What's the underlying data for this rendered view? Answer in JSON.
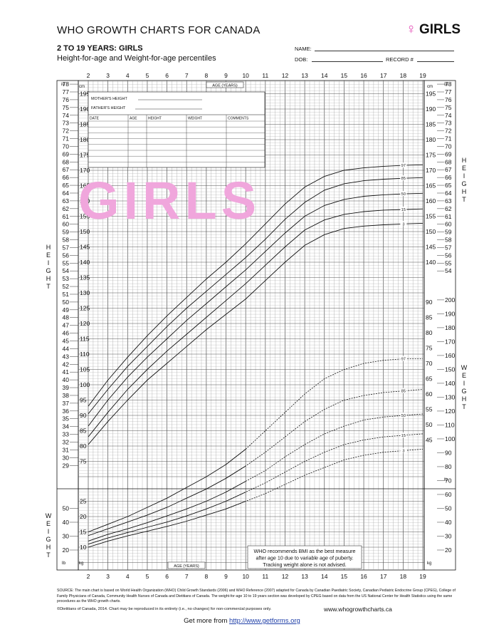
{
  "header": {
    "title": "WHO GROWTH CHARTS FOR CANADA",
    "badge": "GIRLS",
    "subtitle": "2 TO 19 YEARS: GIRLS",
    "subtitle2": "Height-for-age and Weight-for-age percentiles",
    "name_label": "NAME:",
    "dob_label": "DOB:",
    "record_label": "RECORD #"
  },
  "record_table": {
    "mother_height": "MOTHER'S HEIGHT",
    "father_height": "FATHER'S HEIGHT",
    "columns": [
      "DATE",
      "AGE",
      "HEIGHT",
      "WEIGHT",
      "COMMENTS"
    ]
  },
  "watermark": "GIRLS",
  "note": [
    "WHO recommends BMI as the best measure",
    "after age 10 due to variable age of puberty.",
    "Tracking weight alone is not advised."
  ],
  "footer": {
    "source": "SOURCE: The main chart is based on World Health Organization (WHO) Child Growth Standards (2006) and WHO Reference (2007) adapted for Canada by Canadian Paediatric Society, Canadian Pediatric Endocrine Group (CPEG), College of Family Physicians of Canada, Community Health Nurses of Canada and Dietitians of Canada. The weight-for-age 10 to 19 years section was developed by CPEG based on data from the US National Center for Health Statistics using the same procedures as the WHO growth charts.",
    "copyright": "©Dietitians of Canada, 2014. Chart may be reproduced in its entirety (i.e., no changes) for non-commercial purposes only.",
    "site": "www.whogrowthcharts.ca",
    "getmore_prefix": "Get more from ",
    "getmore_link": "http://www.getforms.org"
  },
  "chart_data": [
    {
      "type": "line",
      "name": "height",
      "xlabel": "AGE (YEARS)",
      "ylabel": "HEIGHT",
      "ylabel_letters": [
        "H",
        "E",
        "I",
        "G",
        "H",
        "T"
      ],
      "units": [
        "cm",
        "in"
      ],
      "xlim": [
        2,
        19
      ],
      "ylim_cm": [
        70,
        200
      ],
      "x_ticks": [
        2,
        3,
        4,
        5,
        6,
        7,
        8,
        9,
        10,
        11,
        12,
        13,
        14,
        15,
        16,
        17,
        18,
        19
      ],
      "cm_ticks_left": [
        75,
        80,
        85,
        90,
        95,
        100,
        105,
        110,
        115,
        120,
        125,
        130,
        135,
        140,
        145,
        150,
        155,
        160,
        165,
        170,
        175,
        180,
        185,
        190,
        195
      ],
      "cm_ticks_right": [
        140,
        145,
        150,
        155,
        160,
        165,
        170,
        175,
        180,
        185,
        190,
        195
      ],
      "in_ticks_left": [
        29,
        30,
        31,
        32,
        33,
        34,
        35,
        36,
        37,
        38,
        39,
        40,
        41,
        42,
        43,
        44,
        45,
        46,
        47,
        48,
        49,
        50,
        51,
        52,
        53,
        54,
        55,
        56,
        57,
        58,
        59,
        60,
        61,
        62,
        63,
        64,
        65,
        66,
        67,
        68,
        69,
        70,
        71,
        72,
        73,
        74,
        75,
        76,
        77,
        78
      ],
      "in_ticks_right": [
        54,
        55,
        56,
        57,
        58,
        59,
        60,
        61,
        62,
        63,
        64,
        65,
        66,
        67,
        68,
        69,
        70,
        71,
        72,
        73,
        74,
        75,
        76,
        77,
        78
      ],
      "series": [
        {
          "label": "97",
          "x": [
            2,
            3,
            4,
            5,
            6,
            7,
            8,
            9,
            10,
            11,
            12,
            13,
            14,
            15,
            16,
            17,
            18,
            19
          ],
          "values": [
            93,
            101.5,
            109,
            116,
            122.5,
            128.5,
            134.5,
            140,
            146,
            152.5,
            159,
            164.5,
            168,
            170,
            170.8,
            171.3,
            171.6,
            171.8
          ]
        },
        {
          "label": "85",
          "x": [
            2,
            3,
            4,
            5,
            6,
            7,
            8,
            9,
            10,
            11,
            12,
            13,
            14,
            15,
            16,
            17,
            18,
            19
          ],
          "values": [
            90.5,
            98.5,
            106,
            112.5,
            119,
            125,
            130.5,
            136,
            141.5,
            147.5,
            154,
            159.5,
            163.5,
            165.6,
            166.6,
            167.1,
            167.4,
            167.6
          ]
        },
        {
          "label": "50",
          "x": [
            2,
            3,
            4,
            5,
            6,
            7,
            8,
            9,
            10,
            11,
            12,
            13,
            14,
            15,
            16,
            17,
            18,
            19
          ],
          "values": [
            86.5,
            95,
            102.5,
            109,
            115,
            121,
            126.5,
            132,
            137.5,
            143.5,
            149.5,
            155,
            158.5,
            160.5,
            161.5,
            162,
            162.3,
            162.5
          ]
        },
        {
          "label": "15",
          "x": [
            2,
            3,
            4,
            5,
            6,
            7,
            8,
            9,
            10,
            11,
            12,
            13,
            14,
            15,
            16,
            17,
            18,
            19
          ],
          "values": [
            83,
            91,
            98.5,
            105,
            111,
            116.5,
            122,
            127.5,
            133,
            139,
            145,
            150.5,
            153.8,
            155.6,
            156.5,
            157,
            157.2,
            157.4
          ]
        },
        {
          "label": "3",
          "x": [
            2,
            3,
            4,
            5,
            6,
            7,
            8,
            9,
            10,
            11,
            12,
            13,
            14,
            15,
            16,
            17,
            18,
            19
          ],
          "values": [
            80.5,
            88,
            95,
            101.5,
            107,
            112.5,
            118,
            123,
            128,
            134,
            140,
            145.5,
            149,
            151,
            151.8,
            152.2,
            152.5,
            152.7
          ]
        }
      ]
    },
    {
      "type": "line",
      "name": "weight",
      "xlabel": "AGE (YEARS)",
      "ylabel": "WEIGHT",
      "ylabel_letters": [
        "W",
        "E",
        "I",
        "G",
        "H",
        "T"
      ],
      "units": [
        "kg",
        "lb"
      ],
      "xlim": [
        2,
        19
      ],
      "ylim_kg": [
        5,
        95
      ],
      "kg_ticks_left": [
        10,
        15,
        20,
        25
      ],
      "kg_ticks_right": [
        10,
        15,
        20,
        25,
        30,
        35,
        40,
        45,
        50,
        55,
        60,
        65,
        70,
        75,
        80,
        85,
        90
      ],
      "kg_labels_right": [
        45,
        50,
        55,
        60,
        65,
        70,
        75,
        80,
        85,
        90
      ],
      "kg_labels_left_top": [
        75,
        80,
        85,
        90,
        95,
        100,
        105,
        110,
        115,
        120,
        125,
        130,
        135,
        140,
        145,
        150,
        155,
        160,
        165,
        170,
        175,
        180,
        185,
        190,
        195
      ],
      "lb_ticks_left": [
        20,
        30,
        40,
        50
      ],
      "lb_ticks_right": [
        20,
        30,
        40,
        50,
        60,
        70,
        80,
        90,
        100,
        110,
        120,
        130,
        140,
        150,
        160,
        170,
        180,
        190,
        200
      ],
      "series": [
        {
          "label": "97",
          "x": [
            2,
            3,
            4,
            5,
            6,
            7,
            8,
            9,
            10,
            11,
            12,
            13,
            14,
            15,
            16,
            17,
            18,
            19
          ],
          "values": [
            15,
            17.5,
            20,
            23,
            26,
            29.5,
            33,
            37,
            42,
            48,
            54,
            60,
            65,
            68,
            70,
            71,
            71.5,
            71.5
          ]
        },
        {
          "label": "85",
          "x": [
            2,
            3,
            4,
            5,
            6,
            7,
            8,
            9,
            10,
            11,
            12,
            13,
            14,
            15,
            16,
            17,
            18,
            19
          ],
          "values": [
            13.8,
            16,
            18.2,
            20.5,
            23,
            26,
            29,
            32.5,
            36.5,
            41,
            46,
            51,
            55,
            58,
            59.5,
            60.5,
            61,
            61.5
          ]
        },
        {
          "label": "50",
          "x": [
            2,
            3,
            4,
            5,
            6,
            7,
            8,
            9,
            10,
            11,
            12,
            13,
            14,
            15,
            16,
            17,
            18,
            19
          ],
          "values": [
            12,
            14.2,
            16,
            18,
            20.2,
            22.5,
            25,
            28,
            31.5,
            35,
            39.5,
            43.5,
            47,
            49.5,
            51.5,
            52.5,
            53,
            53.5
          ]
        },
        {
          "label": "15",
          "x": [
            2,
            3,
            4,
            5,
            6,
            7,
            8,
            9,
            10,
            11,
            12,
            13,
            14,
            15,
            16,
            17,
            18,
            19
          ],
          "values": [
            11,
            13,
            14.8,
            16.5,
            18.2,
            20.2,
            22.5,
            25,
            28,
            31,
            34.5,
            38,
            41,
            43.5,
            45,
            46,
            46.5,
            47
          ]
        },
        {
          "label": "3",
          "x": [
            2,
            3,
            4,
            5,
            6,
            7,
            8,
            9,
            10,
            11,
            12,
            13,
            14,
            15,
            16,
            17,
            18,
            19
          ],
          "values": [
            10,
            12,
            13.7,
            15.2,
            16.8,
            18.5,
            20.5,
            22.5,
            25,
            27.5,
            30.5,
            33.5,
            36,
            38.5,
            40,
            41,
            41.5,
            42
          ]
        }
      ]
    }
  ]
}
